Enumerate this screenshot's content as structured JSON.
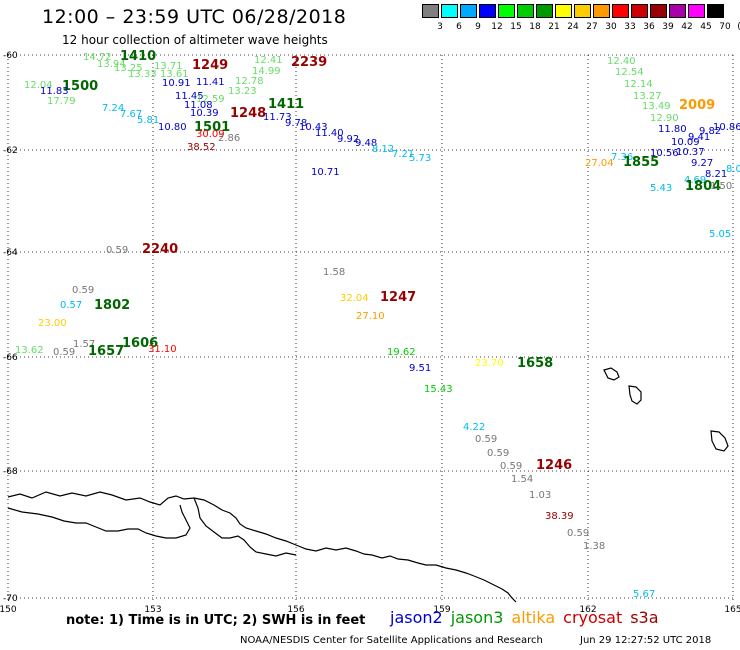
{
  "header": {
    "title": "12:00 – 23:59 UTC 06/28/2018",
    "subtitle": "12 hour collection of altimeter wave heights"
  },
  "legend": {
    "unit": "(ft)",
    "bins": [
      {
        "label": "3",
        "color": "#7f7f7f"
      },
      {
        "label": "6",
        "color": "#00ffff"
      },
      {
        "label": "9",
        "color": "#00aaff"
      },
      {
        "label": "12",
        "color": "#0000ff"
      },
      {
        "label": "15",
        "color": "#00ff00"
      },
      {
        "label": "18",
        "color": "#00cc00"
      },
      {
        "label": "21",
        "color": "#009900"
      },
      {
        "label": "24",
        "color": "#ffff00"
      },
      {
        "label": "27",
        "color": "#ffcc00"
      },
      {
        "label": "30",
        "color": "#ff9900"
      },
      {
        "label": "33",
        "color": "#ff0000"
      },
      {
        "label": "36",
        "color": "#cc0000"
      },
      {
        "label": "39",
        "color": "#990000"
      },
      {
        "label": "42",
        "color": "#aa00aa"
      },
      {
        "label": "45",
        "color": "#ff00ff"
      },
      {
        "label": "70",
        "color": "#000000"
      }
    ]
  },
  "axes": {
    "lat_labels": [
      "-60",
      "-62",
      "-64",
      "-66",
      "-68",
      "-70"
    ],
    "lon_labels": [
      "150",
      "153",
      "156",
      "159",
      "162",
      "165"
    ]
  },
  "satellites": [
    {
      "name": "jason2",
      "color": "#0000cc"
    },
    {
      "name": "jason3",
      "color": "#009900"
    },
    {
      "name": "altika",
      "color": "#ff9900"
    },
    {
      "name": "cryosat",
      "color": "#cc0000"
    },
    {
      "name": "s3a",
      "color": "#990000"
    }
  ],
  "note": "note:  1) Time is in UTC;  2) SWH is in feet",
  "footer": "NOAA/NESDIS Center for Satellite Applications and Research",
  "footer_time": "Jun 29 12:27:52 UTC 2018",
  "observations": [
    {
      "text": "14.72",
      "color": "#66dd66"
    },
    {
      "text": "1410",
      "color": "#006600"
    },
    {
      "text": "13.94",
      "color": "#66dd66"
    },
    {
      "text": "13.25",
      "color": "#66dd66"
    },
    {
      "text": "13.71",
      "color": "#66dd66"
    },
    {
      "text": "1249",
      "color": "#990000"
    },
    {
      "text": "12.41",
      "color": "#66dd66"
    },
    {
      "text": "2239",
      "color": "#990000"
    },
    {
      "text": "13.33",
      "color": "#66dd66"
    },
    {
      "text": "13.61",
      "color": "#66dd66"
    },
    {
      "text": "14.99",
      "color": "#66dd66"
    },
    {
      "text": "12.04",
      "color": "#66dd66"
    },
    {
      "text": "1500",
      "color": "#006600"
    },
    {
      "text": "11.83",
      "color": "#0000cc"
    },
    {
      "text": "12.78",
      "color": "#66dd66"
    },
    {
      "text": "11.41",
      "color": "#0000cc"
    },
    {
      "text": "10.91",
      "color": "#0000cc"
    },
    {
      "text": "13.23",
      "color": "#66dd66"
    },
    {
      "text": "17.79",
      "color": "#66dd66"
    },
    {
      "text": "11.45",
      "color": "#0000cc"
    },
    {
      "text": "12.59",
      "color": "#66dd66"
    },
    {
      "text": "1411",
      "color": "#006600"
    },
    {
      "text": "7.24",
      "color": "#00bbee"
    },
    {
      "text": "11.08",
      "color": "#0000cc"
    },
    {
      "text": "7.67",
      "color": "#00bbee"
    },
    {
      "text": "10.39",
      "color": "#0000cc"
    },
    {
      "text": "1248",
      "color": "#990000"
    },
    {
      "text": "11.73",
      "color": "#0000cc"
    },
    {
      "text": "5.81",
      "color": "#00bbee"
    },
    {
      "text": "10.80",
      "color": "#0000cc"
    },
    {
      "text": "1501",
      "color": "#006600"
    },
    {
      "text": "9.78",
      "color": "#0000cc"
    },
    {
      "text": "10.43",
      "color": "#0000cc"
    },
    {
      "text": "30.09",
      "color": "#ff0000"
    },
    {
      "text": "2.86",
      "color": "#777777"
    },
    {
      "text": "11.40",
      "color": "#0000cc"
    },
    {
      "text": "38.52",
      "color": "#990000"
    },
    {
      "text": "9.92",
      "color": "#0000cc"
    },
    {
      "text": "9.48",
      "color": "#0000cc"
    },
    {
      "text": "8.12",
      "color": "#00bbee"
    },
    {
      "text": "7.21",
      "color": "#00bbee"
    },
    {
      "text": "5.73",
      "color": "#00bbee"
    },
    {
      "text": "10.71",
      "color": "#0000cc"
    },
    {
      "text": "12.40",
      "color": "#66dd66"
    },
    {
      "text": "12.54",
      "color": "#66dd66"
    },
    {
      "text": "12.14",
      "color": "#66dd66"
    },
    {
      "text": "13.27",
      "color": "#66dd66"
    },
    {
      "text": "2009",
      "color": "#ff9900"
    },
    {
      "text": "13.49",
      "color": "#66dd66"
    },
    {
      "text": "12.90",
      "color": "#66dd66"
    },
    {
      "text": "10.86",
      "color": "#0000cc"
    },
    {
      "text": "11.80",
      "color": "#0000cc"
    },
    {
      "text": "9.82",
      "color": "#0000cc"
    },
    {
      "text": "9.41",
      "color": "#0000cc"
    },
    {
      "text": "10.09",
      "color": "#0000cc"
    },
    {
      "text": "10.56",
      "color": "#0000cc"
    },
    {
      "text": "10.37",
      "color": "#0000cc"
    },
    {
      "text": "27.04",
      "color": "#ff9900"
    },
    {
      "text": "7.36",
      "color": "#00bbee"
    },
    {
      "text": "1855",
      "color": "#006600"
    },
    {
      "text": "9.27",
      "color": "#0000cc"
    },
    {
      "text": "8.0",
      "color": "#00bbee"
    },
    {
      "text": "8.21",
      "color": "#0000cc"
    },
    {
      "text": "4.69",
      "color": "#00bbee"
    },
    {
      "text": "5.43",
      "color": "#00bbee"
    },
    {
      "text": "1804",
      "color": "#006600"
    },
    {
      "text": "1.50",
      "color": "#777777"
    },
    {
      "text": "5.05",
      "color": "#00bbee"
    },
    {
      "text": "0.59",
      "color": "#777777"
    },
    {
      "text": "2240",
      "color": "#990000"
    },
    {
      "text": "1.58",
      "color": "#777777"
    },
    {
      "text": "0.59",
      "color": "#777777"
    },
    {
      "text": "32.04",
      "color": "#ffcc00"
    },
    {
      "text": "1247",
      "color": "#990000"
    },
    {
      "text": "0.57",
      "color": "#00bbee"
    },
    {
      "text": "1802",
      "color": "#006600"
    },
    {
      "text": "27.10",
      "color": "#ff9900"
    },
    {
      "text": "23.00",
      "color": "#ffcc00"
    },
    {
      "text": "1.57",
      "color": "#777777"
    },
    {
      "text": "1606",
      "color": "#006600"
    },
    {
      "text": "13.62",
      "color": "#66dd66"
    },
    {
      "text": "0.59",
      "color": "#777777"
    },
    {
      "text": "1657",
      "color": "#006600"
    },
    {
      "text": "31.10",
      "color": "#ff0000"
    },
    {
      "text": "19.62",
      "color": "#00cc00"
    },
    {
      "text": "23.70",
      "color": "#ffff00"
    },
    {
      "text": "1658",
      "color": "#006600"
    },
    {
      "text": "9.51",
      "color": "#0000cc"
    },
    {
      "text": "15.43",
      "color": "#00cc00"
    },
    {
      "text": "4.22",
      "color": "#00bbee"
    },
    {
      "text": "0.59",
      "color": "#777777"
    },
    {
      "text": "0.59",
      "color": "#777777"
    },
    {
      "text": "0.59",
      "color": "#777777"
    },
    {
      "text": "1246",
      "color": "#990000"
    },
    {
      "text": "1.54",
      "color": "#777777"
    },
    {
      "text": "1.03",
      "color": "#777777"
    },
    {
      "text": "38.39",
      "color": "#990000"
    },
    {
      "text": "0.59",
      "color": "#777777"
    },
    {
      "text": "1.38",
      "color": "#777777"
    },
    {
      "text": "5.67",
      "color": "#00bbee"
    }
  ]
}
